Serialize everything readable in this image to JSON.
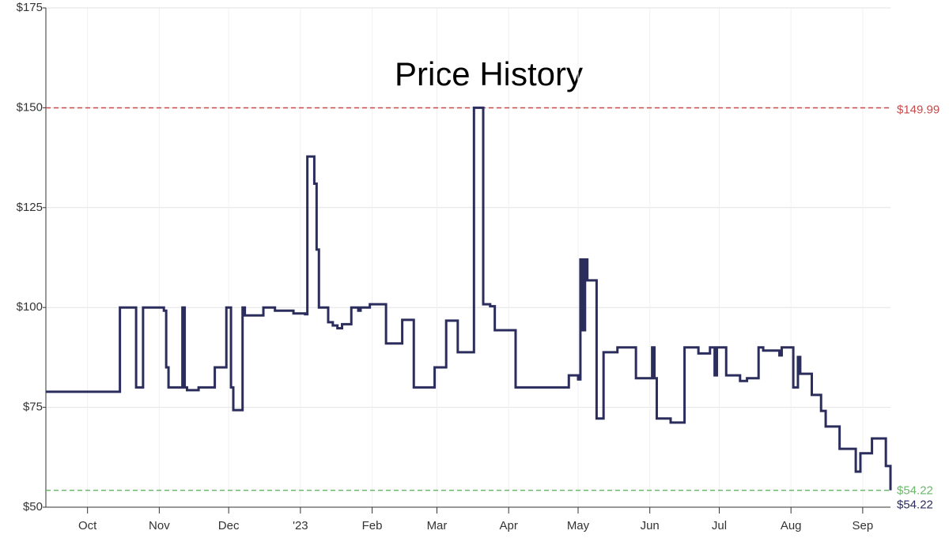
{
  "chart_data": {
    "type": "line",
    "step": "post",
    "title": "Price History",
    "color": "#2b2d5c",
    "x": [
      0,
      32,
      39,
      42,
      51,
      52,
      53,
      59,
      60,
      61,
      66,
      73,
      78,
      80,
      81,
      85,
      86,
      94,
      99,
      107,
      112,
      113,
      116,
      117,
      118,
      122,
      124,
      126,
      128,
      132,
      135,
      136,
      140,
      147,
      154,
      159,
      168,
      173,
      178,
      185,
      189,
      192,
      194,
      203,
      226,
      230,
      231,
      232,
      233,
      234,
      238,
      241,
      247,
      255,
      262,
      263,
      264,
      270,
      276,
      282,
      287,
      289,
      290,
      294,
      300,
      303,
      308,
      310,
      317,
      318,
      323,
      325,
      326,
      331,
      335,
      337,
      343,
      350,
      352,
      357,
      363,
      365
    ],
    "values": [
      78.9,
      100,
      80,
      100,
      99.2,
      85,
      80,
      100,
      80,
      79.3,
      80,
      85,
      100,
      80,
      74.3,
      100,
      98,
      100,
      99.2,
      98.5,
      98.3,
      137.8,
      131,
      114.5,
      100,
      96.3,
      95.5,
      94.8,
      95.8,
      100,
      99.2,
      100,
      100.8,
      91,
      96.9,
      80,
      85,
      96.7,
      88.8,
      150,
      100.8,
      100.3,
      94.3,
      80,
      83,
      82,
      112,
      94.3,
      112,
      106.8,
      72.2,
      88.8,
      90,
      82.3,
      90,
      82.3,
      72.2,
      71.2,
      90,
      88.5,
      90,
      83,
      90,
      83,
      81.6,
      82.3,
      90,
      89.2,
      88,
      90,
      80,
      87.6,
      83.4,
      78.1,
      74.1,
      70.2,
      64.6,
      58.9,
      63.5,
      67.2,
      60.3,
      54.22
    ],
    "xlim": [
      0,
      365
    ],
    "xticks": [
      {
        "value": 18,
        "label": "Oct"
      },
      {
        "value": 49,
        "label": "Nov"
      },
      {
        "value": 79,
        "label": "Dec"
      },
      {
        "value": 110,
        "label": "'23"
      },
      {
        "value": 141,
        "label": "Feb"
      },
      {
        "value": 169,
        "label": "Mar"
      },
      {
        "value": 200,
        "label": "Apr"
      },
      {
        "value": 230,
        "label": "May"
      },
      {
        "value": 261,
        "label": "Jun"
      },
      {
        "value": 291,
        "label": "Jul"
      },
      {
        "value": 322,
        "label": "Aug"
      },
      {
        "value": 353,
        "label": "Sep"
      }
    ],
    "ylim": [
      50,
      175
    ],
    "yticks": [
      {
        "value": 50,
        "label": "$50"
      },
      {
        "value": 75,
        "label": "$75"
      },
      {
        "value": 100,
        "label": "$100"
      },
      {
        "value": 125,
        "label": "$125"
      },
      {
        "value": 150,
        "label": "$150"
      },
      {
        "value": 175,
        "label": "$175"
      }
    ],
    "grid": true,
    "reference_lines": [
      {
        "value": 149.99,
        "label": "$149.99",
        "color": "#c94a4a"
      },
      {
        "value": 54.22,
        "label": "$54.22",
        "color": "#6ab86a"
      }
    ],
    "current_price": {
      "value": 54.22,
      "label": "$54.22"
    }
  }
}
